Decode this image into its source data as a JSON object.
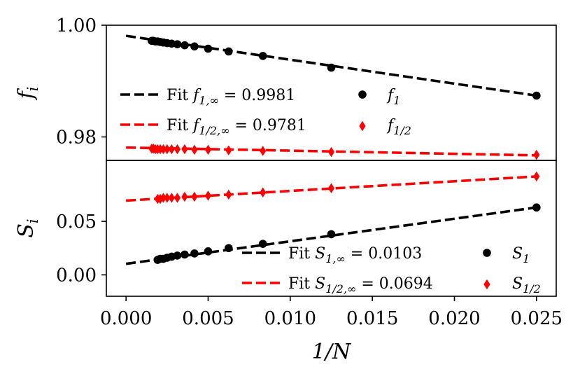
{
  "chart_data": [
    {
      "type": "line",
      "panel": "top",
      "ylabel": "f_i",
      "xlabel": "",
      "xlim": [
        -0.0012,
        0.0262
      ],
      "ylim": [
        0.9758,
        1.0
      ],
      "yticks": [
        0.98,
        1.0
      ],
      "ytick_labels": [
        "0.98",
        "1.00"
      ],
      "grid": false,
      "legend_position": "center-left",
      "series": [
        {
          "name": "f1_points",
          "legend_label": "f_1",
          "marker": "circle",
          "color": "#000000",
          "x": [
            0.025,
            0.0125,
            0.008333,
            0.00625,
            0.005,
            0.004167,
            0.003571,
            0.003125,
            0.002778,
            0.0025,
            0.002273,
            0.002083,
            0.001923,
            0.001786,
            0.001667,
            0.001563
          ],
          "values": [
            0.9874,
            0.9924,
            0.9945,
            0.9953,
            0.9958,
            0.9962,
            0.9964,
            0.9966,
            0.9967,
            0.9968,
            0.9969,
            0.997,
            0.9971,
            0.9971,
            0.9972,
            0.9972
          ]
        },
        {
          "name": "f_half_points",
          "legend_label": "f_{1/2}",
          "marker": "diamond",
          "color": "#ff0000",
          "x": [
            0.025,
            0.0125,
            0.008333,
            0.00625,
            0.005,
            0.004167,
            0.003571,
            0.003125,
            0.002778,
            0.0025,
            0.002273,
            0.002083,
            0.001923,
            0.001786,
            0.001667,
            0.001563
          ],
          "values": [
            0.9768,
            0.9773,
            0.9775,
            0.9776,
            0.9777,
            0.9777,
            0.9778,
            0.9778,
            0.9778,
            0.9778,
            0.9778,
            0.9778,
            0.9778,
            0.9778,
            0.9779,
            0.9779
          ]
        },
        {
          "name": "f1_fit",
          "legend_label": "Fit f_{1,∞} = 0.9981",
          "style": "dashed",
          "color": "#000000",
          "x": [
            0.0,
            0.025
          ],
          "values": [
            0.9981,
            0.9874
          ]
        },
        {
          "name": "f_half_fit",
          "legend_label": "Fit f_{1/2,∞} = 0.9781",
          "style": "dashed",
          "color": "#ff0000",
          "x": [
            0.0,
            0.025
          ],
          "values": [
            0.9781,
            0.9767
          ]
        }
      ],
      "legend": {
        "rows": [
          {
            "fit_prefix": "Fit",
            "fit_math": "f",
            "fit_sub": "1,∞",
            "fit_value": " = 0.9981",
            "marker_math": "f",
            "marker_sub": "1"
          },
          {
            "fit_prefix": "Fit",
            "fit_math": "f",
            "fit_sub": "1/2,∞",
            "fit_value": " = 0.9781",
            "marker_math": "f",
            "marker_sub": "1/2"
          }
        ]
      }
    },
    {
      "type": "line",
      "panel": "bottom",
      "ylabel": "S_i",
      "xlabel": "1/N",
      "xlim": [
        -0.0012,
        0.0262
      ],
      "ylim": [
        -0.02,
        0.107
      ],
      "xticks": [
        0.0,
        0.005,
        0.01,
        0.015,
        0.02,
        0.025
      ],
      "xtick_labels": [
        "0.000",
        "0.005",
        "0.010",
        "0.015",
        "0.020",
        "0.025"
      ],
      "yticks": [
        0.0,
        0.05
      ],
      "ytick_labels": [
        "0.00",
        "0.05"
      ],
      "grid": false,
      "legend_position": "lower-right",
      "series": [
        {
          "name": "S1_points",
          "legend_label": "S_1",
          "marker": "circle",
          "color": "#000000",
          "x": [
            0.025,
            0.0125,
            0.008333,
            0.00625,
            0.005,
            0.004167,
            0.003571,
            0.003125,
            0.002778,
            0.0025,
            0.002273,
            0.002083,
            0.001923
          ],
          "values": [
            0.063,
            0.038,
            0.029,
            0.025,
            0.022,
            0.02,
            0.019,
            0.018,
            0.017,
            0.016,
            0.015,
            0.015,
            0.014
          ]
        },
        {
          "name": "S_half_points",
          "legend_label": "S_{1/2}",
          "marker": "diamond",
          "color": "#ff0000",
          "x": [
            0.025,
            0.0125,
            0.008333,
            0.00625,
            0.005,
            0.004167,
            0.003571,
            0.003125,
            0.002778,
            0.0025,
            0.002273,
            0.002083,
            0.001923
          ],
          "values": [
            0.092,
            0.081,
            0.077,
            0.075,
            0.074,
            0.073,
            0.073,
            0.072,
            0.072,
            0.072,
            0.072,
            0.071,
            0.071
          ]
        },
        {
          "name": "S1_fit",
          "legend_label": "Fit S_{1,∞} = 0.0103",
          "style": "dashed",
          "color": "#000000",
          "x": [
            0.0,
            0.025
          ],
          "values": [
            0.0103,
            0.063
          ]
        },
        {
          "name": "S_half_fit",
          "legend_label": "Fit S_{1/2,∞} = 0.0694",
          "style": "dashed",
          "color": "#ff0000",
          "x": [
            0.0,
            0.025
          ],
          "values": [
            0.0694,
            0.092
          ]
        }
      ],
      "legend": {
        "rows": [
          {
            "fit_prefix": "Fit",
            "fit_math": "S",
            "fit_sub": "1,∞",
            "fit_value": " = 0.0103",
            "marker_math": "S",
            "marker_sub": "1"
          },
          {
            "fit_prefix": "Fit",
            "fit_math": "S",
            "fit_sub": "1/2,∞",
            "fit_value": " = 0.0694",
            "marker_math": "S",
            "marker_sub": "1/2"
          }
        ]
      }
    }
  ]
}
